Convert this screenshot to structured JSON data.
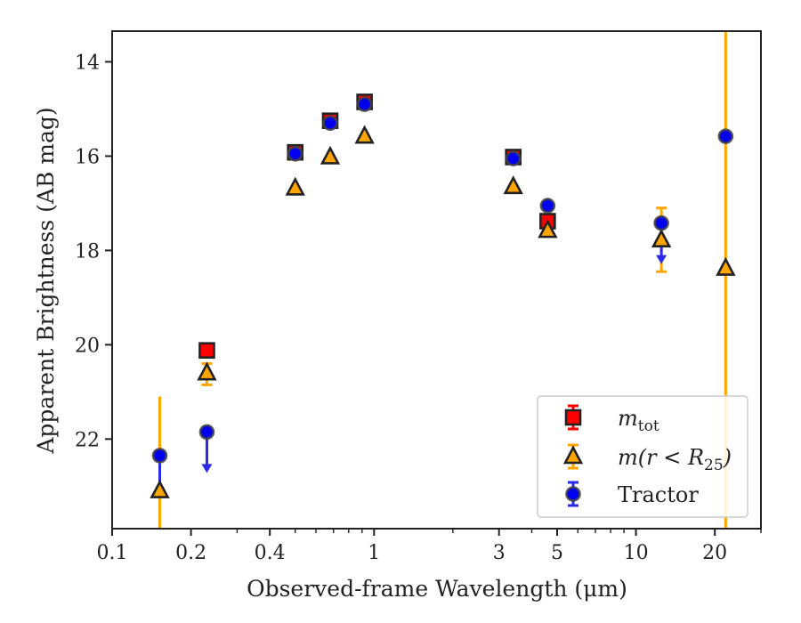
{
  "chart_data": {
    "type": "scatter",
    "xlabel": "Observed-frame Wavelength (μm)",
    "ylabel": "Apparent Brightness (AB mag)",
    "x_scale": "log",
    "y_inverted": true,
    "xlim": [
      0.1,
      30
    ],
    "ylim": [
      23.9,
      13.35
    ],
    "x_ticks": [
      0.1,
      0.2,
      0.4,
      1,
      3,
      5,
      10,
      20
    ],
    "x_tick_labels": [
      "0.1",
      "0.2",
      "0.4",
      "1",
      "3",
      "5",
      "10",
      "20"
    ],
    "y_ticks": [
      14,
      16,
      18,
      20,
      22
    ],
    "y_tick_labels": [
      "14",
      "16",
      "18",
      "20",
      "22"
    ],
    "grid": false,
    "legend_position": "lower-right",
    "series": [
      {
        "key": "mtot",
        "legend_base": "m",
        "legend_sub": "tot",
        "marker": "square",
        "color": "#ff0000",
        "edge_color": "#222222",
        "points": [
          {
            "x": 0.23,
            "y": 20.12
          },
          {
            "x": 0.5,
            "y": 15.92
          },
          {
            "x": 0.68,
            "y": 15.25
          },
          {
            "x": 0.92,
            "y": 14.85
          },
          {
            "x": 3.4,
            "y": 16.02
          },
          {
            "x": 4.6,
            "y": 17.38
          }
        ]
      },
      {
        "key": "mr25",
        "legend_text": "m(r < R",
        "legend_sub": "25",
        "legend_close": ")",
        "marker": "triangle",
        "color": "#ffa500",
        "edge_color": "#222222",
        "points": [
          {
            "x": 0.152,
            "y": 23.1,
            "err_lo": 21.1,
            "err_hi": 23.9
          },
          {
            "x": 0.23,
            "y": 20.6,
            "err_lo": 20.4,
            "err_hi": 20.85
          },
          {
            "x": 0.5,
            "y": 16.68
          },
          {
            "x": 0.68,
            "y": 16.02
          },
          {
            "x": 0.92,
            "y": 15.58
          },
          {
            "x": 3.4,
            "y": 16.65
          },
          {
            "x": 4.6,
            "y": 17.58
          },
          {
            "x": 12.5,
            "y": 17.78,
            "err_lo": 17.1,
            "err_hi": 18.45
          },
          {
            "x": 22.0,
            "y": 18.38,
            "err_lo": 13.35,
            "err_hi": 23.9
          }
        ]
      },
      {
        "key": "tractor",
        "legend_text": "Tractor",
        "marker": "circle",
        "color": "#0000ee",
        "edge_color": "#444444",
        "points": [
          {
            "x": 0.152,
            "y": 22.35,
            "err_lo": 22.35,
            "err_hi": 23.2
          },
          {
            "x": 0.23,
            "y": 21.85,
            "upper_limit": true
          },
          {
            "x": 0.5,
            "y": 15.95
          },
          {
            "x": 0.68,
            "y": 15.3
          },
          {
            "x": 0.92,
            "y": 14.9
          },
          {
            "x": 3.4,
            "y": 16.05
          },
          {
            "x": 4.6,
            "y": 17.05
          },
          {
            "x": 12.5,
            "y": 17.42,
            "upper_limit": true
          },
          {
            "x": 22.0,
            "y": 15.58
          }
        ]
      }
    ]
  }
}
